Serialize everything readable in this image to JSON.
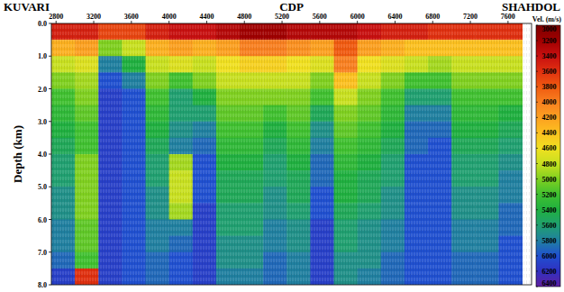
{
  "chart_data": {
    "type": "heatmap",
    "labels": {
      "left": "KUVARI",
      "center": "CDP",
      "right": "SHAHDOL"
    },
    "y_label": "Depth (km)",
    "x": [
      2875,
      3125,
      3375,
      3625,
      3875,
      4125,
      4375,
      4625,
      4875,
      5125,
      5375,
      5625,
      5875,
      6125,
      6375,
      6625,
      6875,
      7125,
      7375,
      7625
    ],
    "y": [
      0.25,
      0.75,
      1.25,
      1.75,
      2.25,
      2.75,
      3.25,
      3.75,
      4.25,
      4.75,
      5.25,
      5.75,
      6.25,
      6.75,
      7.25,
      7.75
    ],
    "xlim": [
      2750,
      7850
    ],
    "ylim": [
      0,
      8
    ],
    "xticks": [
      2800,
      3200,
      3600,
      4000,
      4400,
      4800,
      5200,
      5600,
      6000,
      6400,
      6800,
      7200,
      7600
    ],
    "yticks": [
      {
        "value": 0,
        "label": "0.0"
      },
      {
        "value": 1,
        "label": "1.0"
      },
      {
        "value": 2,
        "label": "2.0"
      },
      {
        "value": 3,
        "label": "3.0"
      },
      {
        "value": 4,
        "label": "4.0"
      },
      {
        "value": 5,
        "label": "5.0"
      },
      {
        "value": 6,
        "label": "6.0"
      },
      {
        "value": 7,
        "label": "7.0"
      },
      {
        "value": 8,
        "label": "8.0"
      }
    ],
    "cells": [
      [
        3500,
        3500,
        3700,
        3700,
        3500,
        3400,
        3400,
        3300,
        3200,
        3200,
        3300,
        3300,
        3300,
        3400,
        3500,
        3500,
        3600,
        3600,
        3600,
        3600
      ],
      [
        4300,
        4200,
        5000,
        4800,
        4300,
        4200,
        4300,
        4200,
        4000,
        4000,
        4100,
        4200,
        3800,
        4200,
        4300,
        4400,
        4400,
        4400,
        4400,
        4400
      ],
      [
        4800,
        4700,
        5800,
        5400,
        4800,
        4700,
        4800,
        4600,
        4500,
        4500,
        4600,
        4700,
        4000,
        4600,
        4700,
        4800,
        4900,
        4800,
        4800,
        4800
      ],
      [
        5000,
        4900,
        6000,
        5800,
        5000,
        5200,
        5000,
        4800,
        4800,
        4800,
        4800,
        5000,
        4400,
        4800,
        5000,
        5200,
        5200,
        5000,
        5000,
        5000
      ],
      [
        5200,
        5000,
        6100,
        6000,
        5200,
        5600,
        5400,
        5000,
        5000,
        5000,
        5000,
        5200,
        4800,
        5000,
        5200,
        5600,
        5600,
        5200,
        5200,
        5200
      ],
      [
        5300,
        5100,
        6100,
        6000,
        5300,
        5600,
        5600,
        5100,
        5100,
        5200,
        5100,
        5500,
        5000,
        5100,
        5300,
        5800,
        5800,
        5300,
        5300,
        5400
      ],
      [
        5400,
        5200,
        6100,
        6000,
        5400,
        5700,
        5800,
        5200,
        5200,
        5400,
        5200,
        5700,
        5100,
        5200,
        5400,
        5900,
        5900,
        5400,
        5400,
        5500
      ],
      [
        5500,
        5200,
        6100,
        6000,
        5500,
        5800,
        5900,
        5300,
        5300,
        5500,
        5300,
        5800,
        5200,
        5300,
        5500,
        5900,
        6000,
        5500,
        5500,
        5600
      ],
      [
        5600,
        5000,
        6100,
        6000,
        5600,
        4900,
        6000,
        5400,
        5400,
        5600,
        5400,
        5900,
        5300,
        5400,
        5600,
        6000,
        6000,
        5600,
        5600,
        5700
      ],
      [
        5600,
        5000,
        6100,
        6000,
        5600,
        4800,
        6000,
        5500,
        5500,
        5600,
        5500,
        5900,
        5400,
        5500,
        5600,
        6000,
        6000,
        5600,
        5600,
        5800
      ],
      [
        5700,
        5000,
        6100,
        6000,
        5700,
        4800,
        6000,
        5500,
        5500,
        5700,
        5500,
        6000,
        5400,
        5500,
        5700,
        6000,
        6000,
        5700,
        5700,
        5800
      ],
      [
        5700,
        5000,
        6100,
        6000,
        5700,
        4900,
        6100,
        5600,
        5600,
        5700,
        5600,
        6000,
        5500,
        5600,
        5700,
        6000,
        6000,
        5700,
        5700,
        5900
      ],
      [
        5800,
        5100,
        6100,
        6000,
        5800,
        5800,
        6100,
        5600,
        5600,
        5800,
        5700,
        6100,
        5600,
        5700,
        5800,
        6000,
        6000,
        5800,
        5800,
        5900
      ],
      [
        5800,
        5100,
        6100,
        6000,
        5800,
        5900,
        6100,
        5700,
        5700,
        5800,
        5700,
        6100,
        5600,
        5700,
        5800,
        6000,
        6000,
        5800,
        5800,
        6000
      ],
      [
        5900,
        5200,
        6100,
        6000,
        5900,
        6000,
        6100,
        5700,
        5700,
        5900,
        5800,
        6100,
        5700,
        5700,
        5900,
        6000,
        6000,
        5900,
        5900,
        6000
      ],
      [
        6100,
        3600,
        6100,
        6000,
        5900,
        6000,
        6100,
        5800,
        5800,
        5900,
        5800,
        6100,
        5700,
        5800,
        5900,
        6000,
        6000,
        5900,
        5900,
        6000
      ]
    ],
    "colorbar": {
      "title": "Vel. (m/s)",
      "range": [
        3000,
        6400
      ],
      "ticks": [
        3000,
        3200,
        3400,
        3600,
        3800,
        4000,
        4200,
        4400,
        4600,
        4800,
        5000,
        5200,
        5400,
        5600,
        5800,
        6000,
        6200,
        6400
      ],
      "colors": [
        "#7d0000",
        "#a00000",
        "#c81010",
        "#e03010",
        "#f05a10",
        "#f88020",
        "#fca020",
        "#fcc020",
        "#f0e020",
        "#c8e020",
        "#80d020",
        "#40c030",
        "#20b040",
        "#20a070",
        "#2080a0",
        "#2050d0",
        "#3030c0",
        "#6020a0"
      ]
    }
  }
}
